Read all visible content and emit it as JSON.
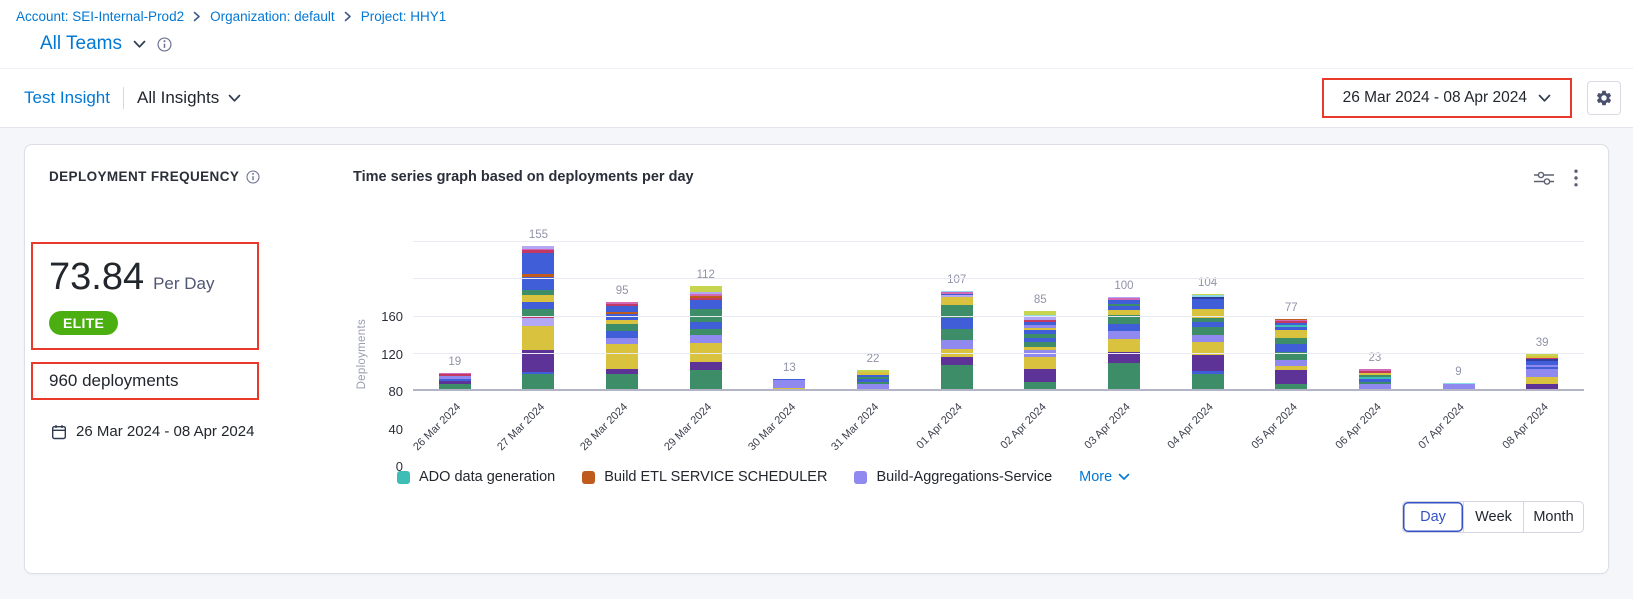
{
  "breadcrumb": {
    "items": [
      "Account: SEI-Internal-Prod2",
      "Organization: default",
      "Project: HHY1"
    ]
  },
  "team_selector": {
    "label": "All Teams"
  },
  "insight_nav": {
    "primary": "Test Insight",
    "dropdown_label": "All Insights"
  },
  "date_range_picker": {
    "label": "26 Mar 2024  -  08 Apr 2024"
  },
  "widget": {
    "title": "DEPLOYMENT FREQUENCY",
    "stat_value": "73.84",
    "stat_unit": "Per Day",
    "badge": "ELITE",
    "total_deployments": "960 deployments",
    "date_range": "26 Mar 2024 - 08 Apr 2024",
    "chart_title": "Time series graph based on deployments per day"
  },
  "legend": {
    "items": [
      {
        "label": "ADO data generation",
        "color": "#3dbdb5"
      },
      {
        "label": "Build ETL SERVICE SCHEDULER",
        "color": "#bf5b1d"
      },
      {
        "label": "Build-Aggregations-Service",
        "color": "#9089ef"
      }
    ],
    "more_label": "More"
  },
  "granularity": {
    "options": [
      "Day",
      "Week",
      "Month"
    ],
    "selected": "Day"
  },
  "colors": {
    "brand_blue": "#0278d5",
    "annotation_red": "#e8392b",
    "elite_green": "#4caf11"
  },
  "chart_data": {
    "type": "bar",
    "stacked": true,
    "title": "Time series graph based on deployments per day",
    "xlabel": "",
    "ylabel": "Deployments",
    "y_ticks": [
      0,
      40,
      80,
      120,
      160
    ],
    "ylim": [
      0,
      160
    ],
    "grid": true,
    "legend_position": "bottom",
    "categories": [
      "26 Mar 2024",
      "27 Mar 2024",
      "28 Mar 2024",
      "29 Mar 2024",
      "30 Mar 2024",
      "31 Mar 2024",
      "01 Apr 2024",
      "02 Apr 2024",
      "03 Apr 2024",
      "04 Apr 2024",
      "05 Apr 2024",
      "06 Apr 2024",
      "07 Apr 2024",
      "08 Apr 2024"
    ],
    "totals": [
      19,
      155,
      95,
      112,
      13,
      22,
      107,
      85,
      100,
      104,
      77,
      23,
      9,
      39
    ],
    "palette": [
      "#3c8d68",
      "#3f5ed8",
      "#d9c33e",
      "#5e3397",
      "#9089ef",
      "#b3a8f3",
      "#3dbdb5",
      "#bf5b1d",
      "#c23a64",
      "#d368b4",
      "#8ed9e9",
      "#c7d44e",
      "#2e3f9f"
    ],
    "segments": [
      [
        [
          0,
          8
        ],
        [
          3,
          3
        ],
        [
          1,
          2
        ],
        [
          4,
          3
        ],
        [
          8,
          2
        ],
        [
          9,
          1
        ]
      ],
      [
        [
          0,
          18
        ],
        [
          1,
          2
        ],
        [
          3,
          24
        ],
        [
          2,
          25
        ],
        [
          5,
          9
        ],
        [
          8,
          2
        ],
        [
          0,
          8
        ],
        [
          1,
          7
        ],
        [
          2,
          7
        ],
        [
          0,
          6
        ],
        [
          1,
          14
        ],
        [
          7,
          3
        ],
        [
          1,
          22
        ],
        [
          8,
          3
        ],
        [
          9,
          2
        ],
        [
          5,
          3
        ]
      ],
      [
        [
          0,
          18
        ],
        [
          3,
          6
        ],
        [
          2,
          26
        ],
        [
          4,
          7
        ],
        [
          1,
          7
        ],
        [
          0,
          8
        ],
        [
          2,
          4
        ],
        [
          1,
          6
        ],
        [
          7,
          2
        ],
        [
          1,
          7
        ],
        [
          8,
          2
        ],
        [
          9,
          2
        ]
      ],
      [
        [
          0,
          22
        ],
        [
          3,
          9
        ],
        [
          2,
          20
        ],
        [
          4,
          9
        ],
        [
          0,
          6
        ],
        [
          1,
          8
        ],
        [
          0,
          13
        ],
        [
          1,
          10
        ],
        [
          8,
          2
        ],
        [
          7,
          2
        ],
        [
          9,
          2
        ],
        [
          5,
          3
        ],
        [
          11,
          6
        ]
      ],
      [
        [
          0,
          1
        ],
        [
          2,
          2
        ],
        [
          4,
          9
        ],
        [
          1,
          1
        ]
      ],
      [
        [
          4,
          8
        ],
        [
          0,
          2
        ],
        [
          1,
          3
        ],
        [
          0,
          2
        ],
        [
          1,
          2
        ],
        [
          2,
          3
        ],
        [
          11,
          2
        ]
      ],
      [
        [
          0,
          28
        ],
        [
          3,
          8
        ],
        [
          2,
          9
        ],
        [
          4,
          9
        ],
        [
          0,
          12
        ],
        [
          1,
          12
        ],
        [
          0,
          14
        ],
        [
          2,
          8
        ],
        [
          5,
          2
        ],
        [
          1,
          2
        ],
        [
          9,
          2
        ],
        [
          10,
          1
        ]
      ],
      [
        [
          0,
          10
        ],
        [
          3,
          14
        ],
        [
          2,
          12
        ],
        [
          4,
          8
        ],
        [
          2,
          3
        ],
        [
          0,
          5
        ],
        [
          1,
          5
        ],
        [
          0,
          4
        ],
        [
          1,
          4
        ],
        [
          2,
          2
        ],
        [
          4,
          3
        ],
        [
          1,
          4
        ],
        [
          8,
          2
        ],
        [
          5,
          3
        ],
        [
          10,
          2
        ],
        [
          11,
          4
        ]
      ],
      [
        [
          0,
          30
        ],
        [
          3,
          12
        ],
        [
          2,
          14
        ],
        [
          4,
          8
        ],
        [
          1,
          7
        ],
        [
          0,
          10
        ],
        [
          2,
          5
        ],
        [
          1,
          5
        ],
        [
          0,
          2
        ],
        [
          1,
          4
        ],
        [
          9,
          2
        ],
        [
          5,
          1
        ]
      ],
      [
        [
          0,
          18
        ],
        [
          1,
          3
        ],
        [
          3,
          17
        ],
        [
          2,
          14
        ],
        [
          4,
          8
        ],
        [
          0,
          8
        ],
        [
          1,
          6
        ],
        [
          0,
          4
        ],
        [
          2,
          10
        ],
        [
          1,
          10
        ],
        [
          12,
          2
        ],
        [
          10,
          2
        ],
        [
          11,
          2
        ]
      ],
      [
        [
          0,
          8
        ],
        [
          3,
          14
        ],
        [
          2,
          5
        ],
        [
          4,
          6
        ],
        [
          0,
          9
        ],
        [
          1,
          8
        ],
        [
          0,
          7
        ],
        [
          2,
          8
        ],
        [
          1,
          3
        ],
        [
          6,
          2
        ],
        [
          1,
          3
        ],
        [
          8,
          2
        ],
        [
          9,
          1
        ],
        [
          7,
          1
        ]
      ],
      [
        [
          2,
          2
        ],
        [
          4,
          6
        ],
        [
          0,
          2
        ],
        [
          1,
          3
        ],
        [
          6,
          2
        ],
        [
          0,
          2
        ],
        [
          2,
          2
        ],
        [
          8,
          2
        ],
        [
          9,
          2
        ]
      ],
      [
        [
          4,
          8
        ],
        [
          10,
          1
        ]
      ],
      [
        [
          3,
          7
        ],
        [
          2,
          8
        ],
        [
          4,
          8
        ],
        [
          1,
          3
        ],
        [
          4,
          2
        ],
        [
          1,
          4
        ],
        [
          12,
          2
        ],
        [
          8,
          1
        ],
        [
          2,
          2
        ],
        [
          11,
          2
        ]
      ]
    ]
  }
}
